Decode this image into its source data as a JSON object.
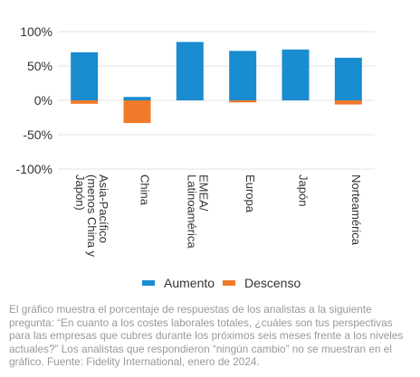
{
  "chart_data": {
    "type": "bar",
    "categories": [
      "Asia-Pacífico (menos China y Japón)",
      "China",
      "EMEA/ Latinoamérica",
      "Europa",
      "Japón",
      "Norteamérica"
    ],
    "category_lines": [
      [
        "Asia-Pacífico",
        "(menos China y",
        "Japón)"
      ],
      [
        "China"
      ],
      [
        "EMEA/",
        "Latinoamérica"
      ],
      [
        "Europa"
      ],
      [
        "Japón"
      ],
      [
        "Norteamérica"
      ]
    ],
    "series": [
      {
        "name": "Aumento",
        "color": "#1a8cd0",
        "values": [
          70,
          5,
          85,
          72,
          74,
          62
        ]
      },
      {
        "name": "Descenso",
        "color": "#f07a2a",
        "values": [
          -5,
          -33,
          0,
          -3,
          0,
          -6
        ]
      }
    ],
    "ylim": [
      -100,
      100
    ],
    "yticks": [
      100,
      50,
      0,
      -50,
      -100
    ],
    "ytick_labels": [
      "100%",
      "50%",
      "0%",
      "-50%",
      "-100%"
    ],
    "grid": true,
    "legend_position": "bottom",
    "caption": "El gráfico muestra el porcentaje de respuestas de los analistas a la siguiente pregunta: “En cuanto a los costes laborales totales, ¿cuáles son tus perspectivas para las empresas que cubres durante los próximos seis meses frente a los niveles actuales?” Los analistas que respondieron “ningún cambio” no se muestran en el gráfico. Fuente: Fidelity International, enero de 2024."
  }
}
